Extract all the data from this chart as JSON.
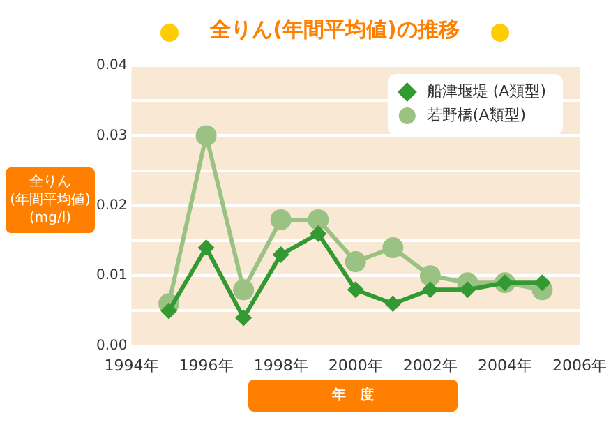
{
  "chart_data": {
    "type": "line",
    "title": "全りん(年間平均値)の推移",
    "xlabel": "年　度",
    "ylabel": "全りん\n(年間平均値)\n(mg/l)",
    "x": [
      1995,
      1996,
      1997,
      1998,
      1999,
      2000,
      2001,
      2002,
      2003,
      2004,
      2005
    ],
    "series": [
      {
        "name": "船津堰堤 (A類型)",
        "color": "#339933",
        "marker": "diamond",
        "values": [
          0.005,
          0.014,
          0.004,
          0.013,
          0.016,
          0.008,
          0.006,
          0.008,
          0.008,
          0.009,
          0.009
        ]
      },
      {
        "name": "若野橋(A類型)",
        "color": "#99c283",
        "marker": "circle",
        "values": [
          0.006,
          0.03,
          0.008,
          0.018,
          0.018,
          0.012,
          0.014,
          0.01,
          0.009,
          0.009,
          0.008
        ]
      }
    ],
    "xlim": [
      1994,
      2006
    ],
    "xticks": [
      {
        "value": 1994,
        "label": "1994年"
      },
      {
        "value": 1996,
        "label": "1996年"
      },
      {
        "value": 1998,
        "label": "1998年"
      },
      {
        "value": 2000,
        "label": "2000年"
      },
      {
        "value": 2002,
        "label": "2002年"
      },
      {
        "value": 2004,
        "label": "2004年"
      },
      {
        "value": 2006,
        "label": "2006年"
      }
    ],
    "ylim": [
      0,
      0.04
    ],
    "yticks": [
      {
        "value": 0,
        "label": "0.00"
      },
      {
        "value": 0.005,
        "label": null
      },
      {
        "value": 0.01,
        "label": "0.01"
      },
      {
        "value": 0.015,
        "label": null
      },
      {
        "value": 0.02,
        "label": "0.02"
      },
      {
        "value": 0.025,
        "label": null
      },
      {
        "value": 0.03,
        "label": "0.03"
      },
      {
        "value": 0.035,
        "label": null
      },
      {
        "value": 0.04,
        "label": "0.04"
      }
    ],
    "grid": "y",
    "legend": "top right"
  }
}
